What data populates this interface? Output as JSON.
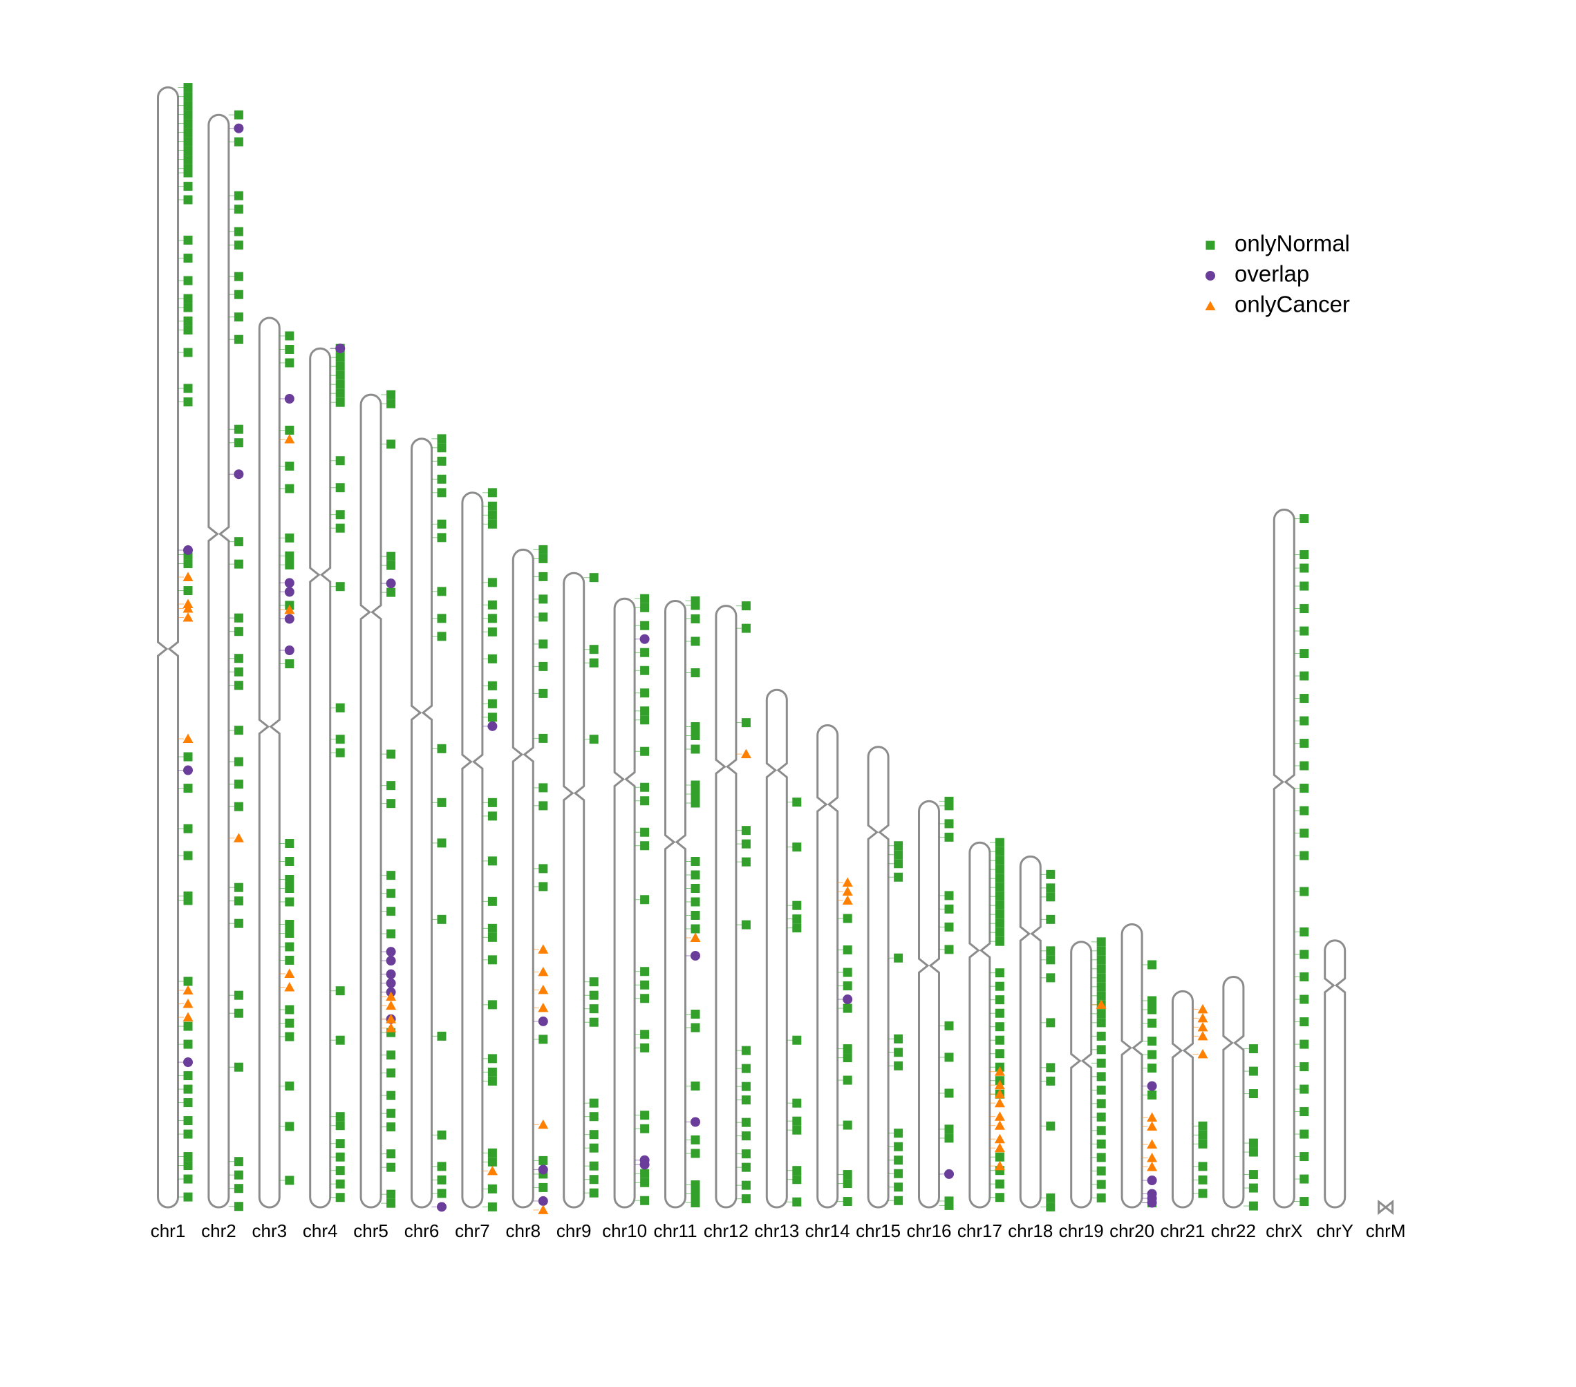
{
  "chart_data": {
    "type": "karyogram",
    "chromosomes": [
      {
        "name": "chr1",
        "length": 249.3,
        "centromere": 125
      },
      {
        "name": "chr2",
        "length": 243.2,
        "centromere": 93.3
      },
      {
        "name": "chr3",
        "length": 198.0,
        "centromere": 91
      },
      {
        "name": "chr4",
        "length": 191.2,
        "centromere": 50.4
      },
      {
        "name": "chr5",
        "length": 180.9,
        "centromere": 48.4
      },
      {
        "name": "chr6",
        "length": 171.1,
        "centromere": 61
      },
      {
        "name": "chr7",
        "length": 159.1,
        "centromere": 59.9
      },
      {
        "name": "chr8",
        "length": 146.4,
        "centromere": 45.6
      },
      {
        "name": "chr9",
        "length": 141.2,
        "centromere": 49
      },
      {
        "name": "chr10",
        "length": 135.5,
        "centromere": 40.2
      },
      {
        "name": "chr11",
        "length": 135.0,
        "centromere": 53.7
      },
      {
        "name": "chr12",
        "length": 133.9,
        "centromere": 35.8
      },
      {
        "name": "chr13",
        "length": 115.2,
        "centromere": 17.9
      },
      {
        "name": "chr14",
        "length": 107.3,
        "centromere": 17.6
      },
      {
        "name": "chr15",
        "length": 102.5,
        "centromere": 19
      },
      {
        "name": "chr16",
        "length": 90.4,
        "centromere": 36.6
      },
      {
        "name": "chr17",
        "length": 81.2,
        "centromere": 24
      },
      {
        "name": "chr18",
        "length": 78.1,
        "centromere": 17.2
      },
      {
        "name": "chr19",
        "length": 59.1,
        "centromere": 26.5
      },
      {
        "name": "chr20",
        "length": 63.0,
        "centromere": 27.5
      },
      {
        "name": "chr21",
        "length": 48.1,
        "centromere": 13.2
      },
      {
        "name": "chr22",
        "length": 51.3,
        "centromere": 14.7
      },
      {
        "name": "chrX",
        "length": 155.3,
        "centromere": 60.6
      },
      {
        "name": "chrY",
        "length": 59.4,
        "centromere": 10
      },
      {
        "name": "chrM",
        "length": 0.0166,
        "centromere": null
      }
    ],
    "series": [
      {
        "name": "onlyNormal",
        "color": "#33a02c",
        "shape": "square",
        "values": [
          [
            0,
            2,
            4,
            6,
            8,
            10,
            12,
            14,
            16,
            18,
            19,
            22,
            25,
            34,
            38,
            43,
            47,
            49,
            52,
            54,
            59,
            67,
            70,
            104,
            106,
            112,
            149,
            156,
            165,
            171,
            180,
            181,
            199,
            209,
            213,
            220,
            223,
            226,
            230,
            233,
            238,
            240,
            243,
            247
          ],
          [
            0,
            6,
            18,
            21,
            26,
            29,
            36,
            40,
            45,
            50,
            70,
            73,
            95,
            100,
            112,
            115,
            121,
            124,
            127,
            137,
            144,
            149,
            154,
            172,
            175,
            180,
            196,
            200,
            212,
            233,
            236,
            239,
            243
          ],
          [
            4,
            7,
            10,
            25,
            33,
            38,
            49,
            53,
            55,
            64,
            77,
            117,
            121,
            125,
            127,
            130,
            135,
            137,
            140,
            143,
            154,
            157,
            160,
            171,
            180,
            192
          ],
          [
            0,
            2,
            4,
            6,
            8,
            10,
            12,
            25,
            31,
            37,
            40,
            53,
            80,
            87,
            90,
            143,
            154,
            171,
            173,
            177,
            180,
            183,
            186,
            189
          ],
          [
            0,
            2,
            11,
            36,
            38,
            44,
            80,
            87,
            91,
            107,
            111,
            115,
            120,
            142,
            147,
            151,
            156,
            160,
            163,
            169,
            172,
            178,
            180
          ],
          [
            0,
            2,
            5,
            9,
            12,
            19,
            22,
            34,
            40,
            44,
            69,
            81,
            90,
            107,
            133,
            155,
            162,
            165,
            168
          ],
          [
            0,
            3,
            5,
            7,
            20,
            25,
            28,
            31,
            37,
            43,
            47,
            50,
            69,
            72,
            82,
            91,
            97,
            99,
            104,
            114,
            126,
            129,
            131,
            147,
            149,
            155,
            159
          ],
          [
            0,
            2,
            6,
            11,
            15,
            21,
            26,
            32,
            42,
            53,
            57,
            71,
            75,
            109,
            136,
            139,
            142
          ],
          [
            1,
            17,
            20,
            37,
            91,
            94,
            97,
            100,
            118,
            121,
            125,
            128,
            132,
            135,
            138
          ],
          [
            0,
            2,
            6,
            12,
            16,
            21,
            25,
            27,
            34,
            42,
            45,
            52,
            55,
            67,
            83,
            86,
            89,
            97,
            100,
            115,
            118,
            128,
            130,
            134
          ],
          [
            0,
            1,
            4,
            9,
            16,
            28,
            30,
            33,
            41,
            43,
            45,
            58,
            61,
            64,
            67,
            70,
            73,
            92,
            95,
            108,
            120,
            123,
            130,
            132,
            134
          ],
          [
            0,
            5,
            26,
            50,
            53,
            57,
            71,
            99,
            103,
            107,
            110,
            115,
            118,
            122,
            125,
            129,
            132
          ],
          [
            25,
            35,
            48,
            51,
            53,
            78,
            92,
            96,
            98,
            107,
            109,
            114
          ],
          [
            43,
            50,
            55,
            58,
            63,
            72,
            74,
            79,
            89,
            100,
            102,
            106
          ],
          [
            22,
            24,
            26,
            29,
            47,
            65,
            68,
            71,
            86,
            89,
            92,
            95,
            98,
            101
          ],
          [
            0,
            1,
            5,
            8,
            21,
            24,
            28,
            33,
            50,
            57,
            65,
            73,
            75,
            89,
            90
          ],
          [
            0,
            2,
            4,
            6,
            8,
            10,
            12,
            14,
            16,
            18,
            20,
            22,
            29,
            32,
            35,
            38,
            41,
            44,
            47,
            50,
            53,
            56,
            70,
            73,
            76,
            79
          ],
          [
            4,
            7,
            9,
            14,
            21,
            23,
            27,
            37,
            47,
            50,
            60,
            76,
            78
          ],
          [
            0,
            2,
            4,
            6,
            8,
            10,
            12,
            14,
            16,
            18,
            21,
            24,
            27,
            30,
            33,
            36,
            39,
            42,
            45,
            48,
            51,
            54,
            57
          ],
          [
            9,
            17,
            19,
            22,
            26,
            29,
            32,
            38,
            62
          ],
          [
            30,
            32,
            34,
            39,
            42,
            45
          ],
          [
            16,
            21,
            26,
            37,
            39,
            44,
            47,
            51
          ],
          [
            2,
            10,
            13,
            17,
            22,
            27,
            32,
            37,
            42,
            47,
            52,
            57,
            62,
            67,
            72,
            77,
            85,
            94,
            99,
            104,
            109,
            114,
            119,
            124,
            129,
            134,
            139,
            144,
            149,
            154
          ],
          [],
          []
        ]
      },
      {
        "name": "overlap",
        "color": "#6a3d9a",
        "shape": "circle",
        "values": [
          [
            103,
            152,
            217
          ],
          [
            3,
            80
          ],
          [
            18,
            59,
            61,
            67,
            74
          ],
          [
            0
          ],
          [
            42,
            124,
            126,
            129,
            131,
            133,
            139
          ],
          [
            171
          ],
          [
            52
          ],
          [
            105,
            138,
            145
          ],
          [],
          [
            9,
            125,
            126
          ],
          [
            79,
            116
          ],
          [],
          [],
          [
            61
          ],
          [],
          [
            83
          ],
          [],
          [],
          [],
          [
            36,
            57,
            60,
            61,
            62
          ],
          [],
          [],
          [],
          [],
          []
        ]
      },
      {
        "name": "onlyCancer",
        "color": "#ff7f00",
        "shape": "triangle",
        "values": [
          [
            109,
            115,
            116,
            118,
            145,
            201,
            204,
            207
          ],
          [
            161
          ],
          [
            27,
            65,
            146,
            149
          ],
          [],
          [
            134,
            136,
            139,
            141
          ],
          [],
          [
            151
          ],
          [
            89,
            94,
            98,
            102,
            128,
            147
          ],
          [],
          [],
          [
            75
          ],
          [
            33
          ],
          [],
          [
            35,
            37,
            39
          ],
          [],
          [],
          [
            51,
            54,
            56,
            58,
            61,
            63,
            66,
            68,
            72
          ],
          [],
          [
            14
          ],
          [
            43,
            45,
            49,
            52,
            54
          ],
          [
            4,
            6,
            8,
            10,
            14
          ],
          [],
          [],
          [],
          []
        ]
      }
    ]
  }
}
